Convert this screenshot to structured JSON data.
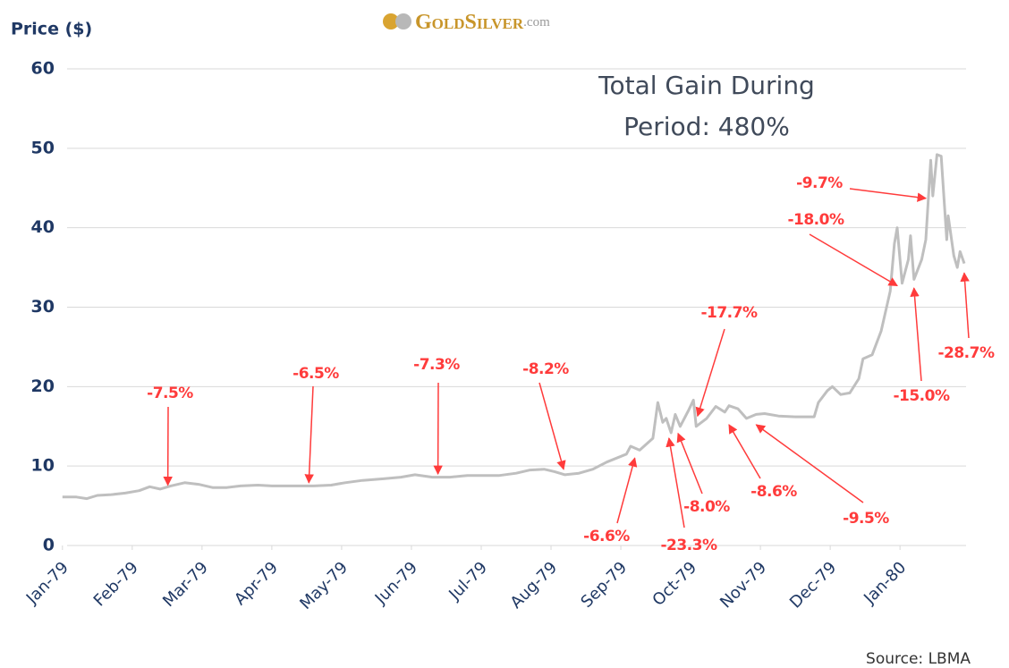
{
  "chart_data": {
    "type": "line",
    "logo": {
      "main": "GoldSilver",
      "suffix": ".com"
    },
    "y_label": "Price ($)",
    "headline": [
      "Total Gain During",
      "Period: 480%"
    ],
    "source": "Source: LBMA",
    "xlim": [
      -0.1,
      13.1
    ],
    "xticks": [
      {
        "value": 0,
        "label": "Jan-79"
      },
      {
        "value": 1,
        "label": "Feb-79"
      },
      {
        "value": 2,
        "label": "Mar-79"
      },
      {
        "value": 3,
        "label": "Apr-79"
      },
      {
        "value": 4,
        "label": "May-79"
      },
      {
        "value": 5,
        "label": "Jun-79"
      },
      {
        "value": 6,
        "label": "Jul-79"
      },
      {
        "value": 7,
        "label": "Aug-79"
      },
      {
        "value": 8,
        "label": "Sep-79"
      },
      {
        "value": 9,
        "label": "Oct-79"
      },
      {
        "value": 10,
        "label": "Nov-79"
      },
      {
        "value": 11,
        "label": "Dec-79"
      },
      {
        "value": 12,
        "label": "Jan-80"
      }
    ],
    "ylim": [
      0,
      60
    ],
    "yticks": [
      0,
      10,
      20,
      30,
      40,
      50,
      60
    ],
    "grid": true,
    "series": [
      {
        "name": "Silver",
        "color": "#bfbfbf",
        "x": [
          0,
          0.2,
          0.35,
          0.5,
          0.7,
          0.9,
          1.1,
          1.25,
          1.4,
          1.55,
          1.75,
          1.95,
          2.15,
          2.35,
          2.55,
          2.8,
          3.0,
          3.3,
          3.6,
          3.85,
          4.05,
          4.3,
          4.6,
          4.85,
          5.05,
          5.3,
          5.55,
          5.8,
          6.0,
          6.25,
          6.5,
          6.7,
          6.9,
          7.05,
          7.2,
          7.4,
          7.6,
          7.8,
          8.08,
          8.14,
          8.27,
          8.46,
          8.53,
          8.6,
          8.65,
          8.72,
          8.78,
          8.85,
          8.97,
          9.04,
          9.08,
          9.23,
          9.36,
          9.49,
          9.55,
          9.68,
          9.8,
          9.94,
          10.06,
          10.26,
          10.5,
          10.77,
          10.83,
          10.96,
          11.03,
          11.15,
          11.28,
          11.41,
          11.47,
          11.6,
          11.73,
          11.86,
          11.92,
          11.96,
          12.03,
          12.12,
          12.15,
          12.2,
          12.31,
          12.37,
          12.44,
          12.47,
          12.53,
          12.59,
          12.67,
          12.69,
          12.77,
          12.82,
          12.86,
          12.92
        ],
        "values": [
          6.1,
          6.1,
          5.9,
          6.3,
          6.4,
          6.6,
          6.9,
          7.4,
          7.1,
          7.5,
          7.9,
          7.7,
          7.3,
          7.3,
          7.5,
          7.6,
          7.5,
          7.5,
          7.5,
          7.6,
          7.9,
          8.2,
          8.4,
          8.6,
          8.9,
          8.6,
          8.6,
          8.8,
          8.8,
          8.8,
          9.1,
          9.5,
          9.6,
          9.3,
          8.9,
          9.1,
          9.6,
          10.5,
          11.5,
          12.5,
          12.0,
          13.5,
          18.0,
          15.5,
          16.0,
          14.2,
          16.5,
          15.0,
          17.0,
          18.3,
          15.0,
          16.0,
          17.5,
          16.8,
          17.6,
          17.2,
          16.0,
          16.5,
          16.6,
          16.3,
          16.2,
          16.2,
          18.0,
          19.5,
          20.0,
          19.0,
          19.2,
          21.0,
          23.5,
          24.0,
          27.0,
          32.0,
          38.0,
          40.0,
          33.0,
          36.0,
          39.0,
          33.5,
          36.0,
          38.5,
          48.5,
          44.0,
          49.2,
          49.0,
          38.5,
          41.5,
          36.5,
          35.0,
          37.0,
          35.5
        ]
      }
    ],
    "annotation_color": "#ff3b3b",
    "annotations": [
      {
        "text": "-7.5%",
        "x": 1.51,
        "y": 7.6
      },
      {
        "text": "-6.5%",
        "x": 3.53,
        "y": 7.9
      },
      {
        "text": "-7.3%",
        "x": 5.38,
        "y": 9.0
      },
      {
        "text": "-8.2%",
        "x": 7.18,
        "y": 9.6
      },
      {
        "text": "-17.7%",
        "x": 9.1,
        "y": 16.3
      },
      {
        "text": "-6.6%",
        "x": 8.2,
        "y": 11.0
      },
      {
        "text": "-23.3%",
        "x": 8.69,
        "y": 13.5
      },
      {
        "text": "-8.0%",
        "x": 8.82,
        "y": 14.1
      },
      {
        "text": "-8.6%",
        "x": 9.55,
        "y": 15.2
      },
      {
        "text": "-9.5%",
        "x": 9.94,
        "y": 15.2
      },
      {
        "text": "-18.0%",
        "x": 11.96,
        "y": 32.7
      },
      {
        "text": "-9.7%",
        "x": 12.37,
        "y": 43.7
      },
      {
        "text": "-15.0%",
        "x": 12.2,
        "y": 32.4
      },
      {
        "text": "-28.7%",
        "x": 12.92,
        "y": 34.3
      }
    ]
  }
}
